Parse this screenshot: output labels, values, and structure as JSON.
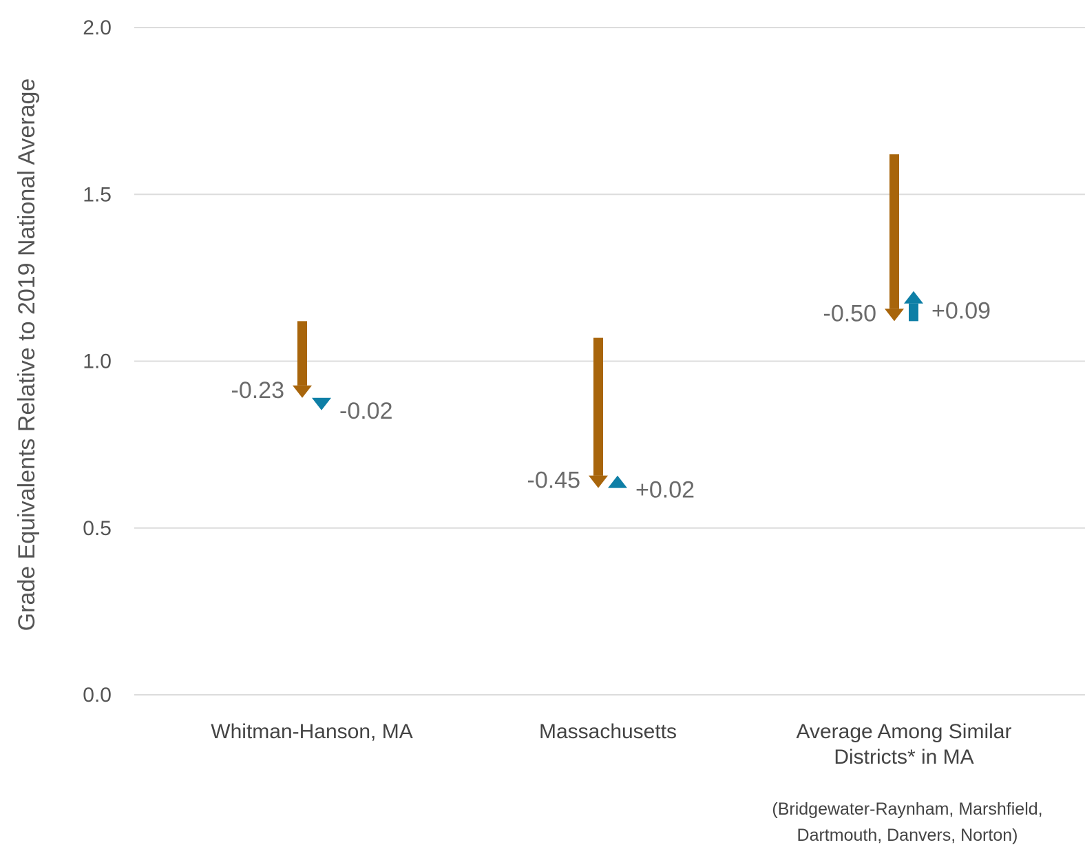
{
  "chart_data": {
    "type": "arrow",
    "ylabel": "Grade Equivalents Relative to 2019 National Average",
    "ylim": [
      0,
      2.0
    ],
    "yticks": [
      "0.0",
      "0.5",
      "1.0",
      "1.5",
      "2.0"
    ],
    "grid": true,
    "colors": {
      "first_change": "#A8650B",
      "second_change": "#0E7FA6"
    },
    "categories": [
      {
        "label": "Whitman-Hanson, MA",
        "label_lines": [
          "Whitman-Hanson, MA"
        ],
        "note_lines": []
      },
      {
        "label": "Massachusetts",
        "label_lines": [
          "Massachusetts"
        ],
        "note_lines": []
      },
      {
        "label": "Average Among Similar Districts* in MA",
        "label_lines": [
          "Average Among Similar",
          "Districts* in MA"
        ],
        "note_lines": [
          "(Bridgewater-Raynham, Marshfield,",
          "Dartmouth, Danvers, Norton)"
        ]
      }
    ],
    "series": [
      {
        "start": [
          1.12,
          1.07,
          1.62
        ],
        "change": [
          -0.23,
          -0.45,
          -0.5
        ],
        "labels": [
          "-0.23",
          "-0.45",
          "-0.50"
        ]
      },
      {
        "start": [
          0.89,
          0.62,
          1.12
        ],
        "change": [
          -0.02,
          0.02,
          0.09
        ],
        "labels": [
          "-0.02",
          "+0.02",
          "+0.09"
        ]
      }
    ]
  }
}
